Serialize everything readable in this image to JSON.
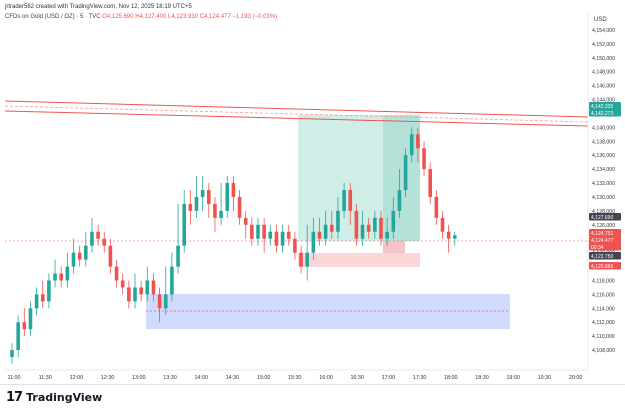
{
  "caption": "jrtrader562 created with TradingView.com, Nov 12, 2025 18:19 UTC+5",
  "legend": {
    "symbol": "CFDs on Gold (USD / OZ) · 5 · TVC",
    "o": "O4,125.690",
    "h": "H4,127.400",
    "l": "L4,123.930",
    "c": "C4,124.477",
    "chg": "−1.193 (−0.03%)"
  },
  "currency": "USD",
  "colors": {
    "up": "#26a69a",
    "down": "#ef5350",
    "trendline": "#ef5350",
    "long_profit": "#cfeee7",
    "long_loss": "#fbd6d8",
    "zone": "#c7d4fb"
  },
  "price_axis": {
    "ticks": [
      "4,154,000",
      "4,152,000",
      "4,150,000",
      "4,148,000",
      "4,146,000",
      "4,144,000",
      "4,142,000",
      "4,140,000",
      "4,138,000",
      "4,136,000",
      "4,134,000",
      "4,132,000",
      "4,130,000",
      "4,128,000",
      "4,126,000",
      "4,124,000",
      "4,122,000",
      "4,120,000",
      "4,118,000",
      "4,116,000",
      "4,114,000",
      "4,112,000",
      "4,110,000",
      "4,108,000"
    ],
    "labels": [
      {
        "text": "4,142.335",
        "color": "#26a69a"
      },
      {
        "text": "4,142.273",
        "color": "#26a69a"
      },
      {
        "text": "4,127.690",
        "color": "#434651"
      },
      {
        "text": "4,124.751",
        "color": "#ef5350"
      },
      {
        "text": "4,124.477",
        "color": "#ef5350"
      },
      {
        "text": "00:34",
        "color": "#ef5350"
      },
      {
        "text": "4,122.750",
        "color": "#434651"
      },
      {
        "text": "4,120.889",
        "color": "#ef5350"
      }
    ]
  },
  "time_axis": [
    "11:00",
    "11:30",
    "12:00",
    "12:30",
    "13:00",
    "13:30",
    "14:00",
    "14:30",
    "15:00",
    "15:30",
    "16:00",
    "16:30",
    "17:00",
    "17:30",
    "18:00",
    "18:30",
    "19:00",
    "19:30",
    "20:00"
  ],
  "brand": {
    "mark": "17",
    "name": "TradingView"
  },
  "chart_data": {
    "type": "candlestick",
    "y_min": 4106,
    "y_max": 4156,
    "candles": [
      [
        4107,
        4108,
        4106,
        4109
      ],
      [
        4108,
        4112,
        4107,
        4113
      ],
      [
        4112,
        4111,
        4110,
        4114
      ],
      [
        4111,
        4114,
        4110,
        4115
      ],
      [
        4114,
        4116,
        4113,
        4117
      ],
      [
        4116,
        4115,
        4114,
        4118
      ],
      [
        4115,
        4118,
        4114,
        4119
      ],
      [
        4118,
        4119,
        4117,
        4121
      ],
      [
        4119,
        4118,
        4117,
        4120
      ],
      [
        4118,
        4120,
        4117,
        4122
      ],
      [
        4120,
        4122,
        4119,
        4124
      ],
      [
        4122,
        4121,
        4120,
        4123
      ],
      [
        4121,
        4123,
        4120,
        4125
      ],
      [
        4123,
        4125,
        4122,
        4127
      ],
      [
        4125,
        4124,
        4123,
        4126
      ],
      [
        4124,
        4123,
        4122,
        4125
      ],
      [
        4123,
        4120,
        4119,
        4124
      ],
      [
        4120,
        4118,
        4117,
        4121
      ],
      [
        4118,
        4117,
        4116,
        4119
      ],
      [
        4117,
        4115,
        4114,
        4118
      ],
      [
        4115,
        4117,
        4114,
        4119
      ],
      [
        4117,
        4116,
        4115,
        4118
      ],
      [
        4116,
        4118,
        4115,
        4120
      ],
      [
        4118,
        4116,
        4115,
        4119
      ],
      [
        4116,
        4114,
        4112,
        4117
      ],
      [
        4114,
        4116,
        4113,
        4120
      ],
      [
        4116,
        4120,
        4115,
        4122
      ],
      [
        4120,
        4123,
        4119,
        4129
      ],
      [
        4123,
        4129,
        4122,
        4131
      ],
      [
        4129,
        4128,
        4126,
        4131
      ],
      [
        4128,
        4130,
        4127,
        4133
      ],
      [
        4130,
        4131,
        4128,
        4133
      ],
      [
        4131,
        4129,
        4127,
        4132
      ],
      [
        4129,
        4127,
        4125,
        4130
      ],
      [
        4127,
        4128,
        4126,
        4132
      ],
      [
        4128,
        4132,
        4127,
        4133
      ],
      [
        4132,
        4130,
        4128,
        4133
      ],
      [
        4130,
        4127,
        4126,
        4131
      ],
      [
        4127,
        4126,
        4124,
        4128
      ],
      [
        4126,
        4124,
        4123,
        4127
      ],
      [
        4124,
        4126,
        4123,
        4127
      ],
      [
        4126,
        4124,
        4122,
        4127
      ],
      [
        4124,
        4125,
        4123,
        4126
      ],
      [
        4125,
        4123,
        4122,
        4126
      ],
      [
        4123,
        4125,
        4122,
        4126
      ],
      [
        4125,
        4124,
        4123,
        4126
      ],
      [
        4124,
        4122,
        4121,
        4125
      ],
      [
        4122,
        4120,
        4119,
        4123
      ],
      [
        4120,
        4122,
        4118,
        4126
      ],
      [
        4122,
        4125,
        4121,
        4127
      ],
      [
        4125,
        4124,
        4123,
        4127
      ],
      [
        4124,
        4126,
        4123,
        4128
      ],
      [
        4126,
        4125,
        4124,
        4128
      ],
      [
        4125,
        4128,
        4124,
        4130
      ],
      [
        4128,
        4131,
        4127,
        4132
      ],
      [
        4131,
        4128,
        4126,
        4132
      ],
      [
        4128,
        4124,
        4123,
        4129
      ],
      [
        4124,
        4126,
        4123,
        4128
      ],
      [
        4126,
        4125,
        4124,
        4127
      ],
      [
        4125,
        4127,
        4124,
        4128
      ],
      [
        4127,
        4124,
        4123,
        4128
      ],
      [
        4124,
        4125,
        4123,
        4127
      ],
      [
        4125,
        4128,
        4124,
        4130
      ],
      [
        4128,
        4131,
        4127,
        4134
      ],
      [
        4131,
        4136,
        4130,
        4137
      ],
      [
        4136,
        4139,
        4135,
        4140
      ],
      [
        4139,
        4137,
        4135,
        4140
      ],
      [
        4137,
        4134,
        4133,
        4138
      ],
      [
        4134,
        4130,
        4129,
        4135
      ],
      [
        4130,
        4127,
        4126,
        4131
      ],
      [
        4127,
        4125,
        4124,
        4128
      ],
      [
        4125,
        4124,
        4122,
        4126
      ],
      [
        4124,
        4124.5,
        4123,
        4125
      ]
    ]
  }
}
